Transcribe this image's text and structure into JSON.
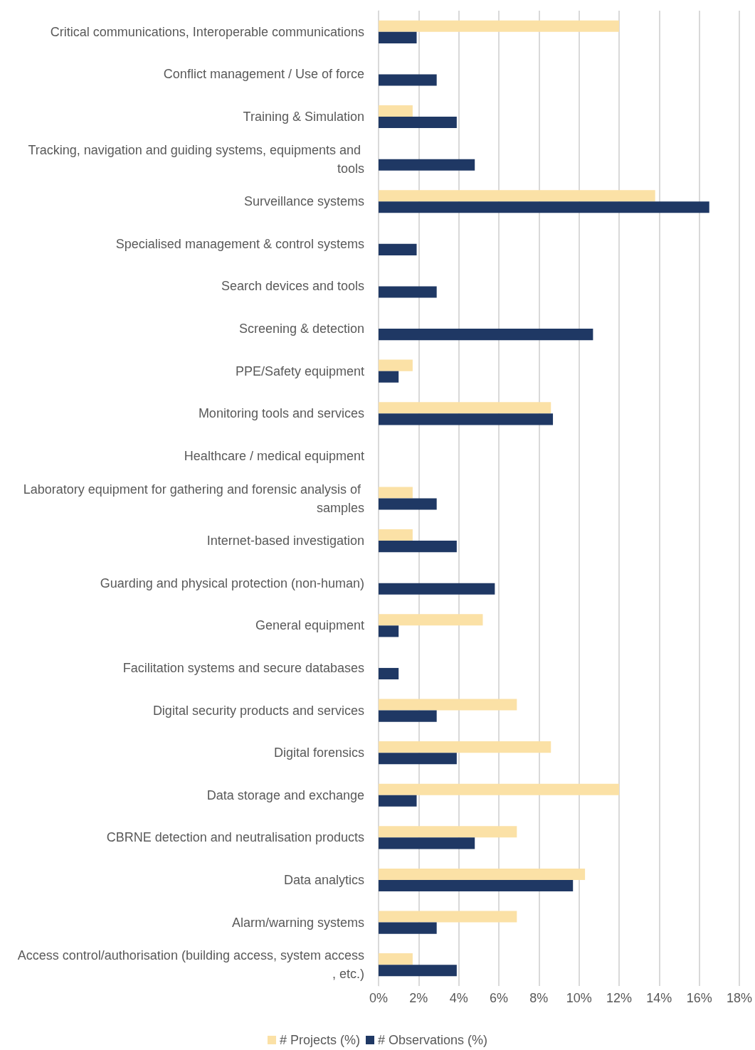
{
  "chart_data": {
    "type": "bar",
    "orientation": "horizontal",
    "categories": [
      "Critical communications, Interoperable communications",
      "Conflict management / Use of force",
      "Training & Simulation",
      "Tracking, navigation and guiding systems, equipments and tools",
      "Surveillance systems",
      "Specialised management & control systems",
      "Search devices and tools",
      "Screening & detection",
      "PPE/Safety equipment",
      "Monitoring tools and services",
      "Healthcare / medical equipment",
      "Laboratory equipment for gathering and forensic analysis of samples",
      "Internet-based investigation",
      "Guarding and physical protection (non-human)",
      "General equipment",
      "Facilitation systems and secure databases",
      "Digital security products and services",
      "Digital forensics",
      "Data storage and exchange",
      "CBRNE detection and neutralisation products",
      "Data analytics",
      "Alarm/warning systems",
      "Access control/authorisation (building access, system access, etc.)"
    ],
    "series": [
      {
        "name": "# Projects (%)",
        "color": "#fbe1a6",
        "values": [
          12.0,
          0,
          1.7,
          0,
          13.8,
          0,
          0,
          0,
          1.7,
          8.6,
          0,
          1.7,
          1.7,
          0,
          5.2,
          0,
          6.9,
          8.6,
          12.0,
          6.9,
          10.3,
          6.9,
          1.7
        ]
      },
      {
        "name": "# Observations (%)",
        "color": "#1f3864",
        "values": [
          1.9,
          2.9,
          3.9,
          4.8,
          16.5,
          1.9,
          2.9,
          10.7,
          1.0,
          8.7,
          0,
          2.9,
          3.9,
          5.8,
          1.0,
          1.0,
          2.9,
          3.9,
          1.9,
          4.8,
          9.7,
          2.9,
          3.9
        ]
      }
    ],
    "xlim": [
      0,
      18
    ],
    "xticks": [
      {
        "value": 0,
        "label": "0%"
      },
      {
        "value": 2,
        "label": "2%"
      },
      {
        "value": 4,
        "label": "4%"
      },
      {
        "value": 6,
        "label": "6%"
      },
      {
        "value": 8,
        "label": "8%"
      },
      {
        "value": 10,
        "label": "10%"
      },
      {
        "value": 12,
        "label": "12%"
      },
      {
        "value": 14,
        "label": "14%"
      },
      {
        "value": 16,
        "label": "16%"
      },
      {
        "value": 18,
        "label": "18%"
      }
    ],
    "grid": "x",
    "legend": "bottom"
  }
}
